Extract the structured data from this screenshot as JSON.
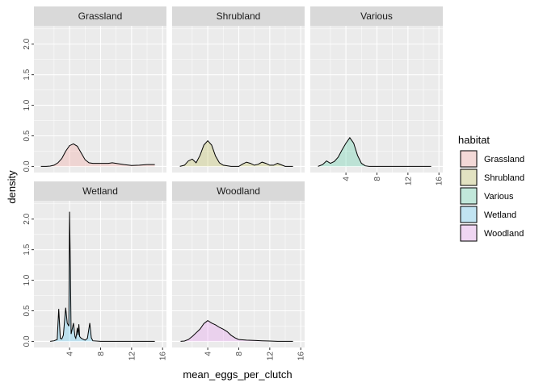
{
  "chart_data": {
    "type": "area",
    "title": "",
    "xlabel": "mean_eggs_per_clutch",
    "ylabel": "density",
    "xlim": [
      -0.6,
      16.5
    ],
    "ylim": [
      -0.1,
      2.3
    ],
    "x_ticks": [
      4,
      8,
      12,
      16
    ],
    "x_tick_labels": [
      "4",
      "8",
      "12",
      "16"
    ],
    "y_ticks": [
      0.0,
      0.5,
      1.0,
      1.5,
      2.0
    ],
    "y_tick_labels": [
      "0.0",
      "0.5",
      "1.0",
      "1.5",
      "2.0"
    ],
    "grid": true,
    "legend": {
      "title": "habitat",
      "position": "right",
      "entries": [
        "Grassland",
        "Shrubland",
        "Various",
        "Wetland",
        "Woodland"
      ]
    },
    "colors": {
      "Grassland": "#F8766D",
      "Shrubland": "#A3A500",
      "Various": "#00BF7D",
      "Wetland": "#00B0F6",
      "Woodland": "#E76BF3",
      "panel_bg": "#EBEBEB",
      "strip_bg": "#D9D9D9",
      "grid": "#FFFFFF"
    },
    "fill_alpha": 0.2,
    "series": [
      {
        "name": "Grassland",
        "x": [
          0.3,
          1.0,
          1.5,
          2.0,
          2.5,
          3.0,
          3.5,
          4.0,
          4.5,
          5.0,
          5.5,
          6.0,
          6.5,
          7.0,
          8.0,
          9.0,
          9.5,
          10.0,
          11.0,
          12.0,
          13.0,
          14.0,
          15.0
        ],
        "y": [
          0.0,
          0.0,
          0.005,
          0.02,
          0.06,
          0.13,
          0.25,
          0.34,
          0.37,
          0.33,
          0.22,
          0.11,
          0.06,
          0.05,
          0.05,
          0.05,
          0.06,
          0.05,
          0.03,
          0.015,
          0.02,
          0.03,
          0.03
        ]
      },
      {
        "name": "Shrubland",
        "x": [
          0.4,
          1.0,
          1.5,
          2.0,
          2.5,
          3.0,
          3.5,
          4.0,
          4.5,
          5.0,
          5.5,
          6.0,
          7.0,
          8.0,
          8.5,
          9.0,
          9.5,
          10.0,
          10.5,
          11.0,
          11.5,
          12.0,
          12.5,
          13.0,
          14.0,
          15.0
        ],
        "y": [
          0.0,
          0.02,
          0.09,
          0.12,
          0.06,
          0.18,
          0.35,
          0.42,
          0.35,
          0.17,
          0.06,
          0.02,
          0.0,
          0.0,
          0.04,
          0.07,
          0.05,
          0.02,
          0.035,
          0.07,
          0.05,
          0.02,
          0.02,
          0.05,
          0.0,
          0.0
        ]
      },
      {
        "name": "Various",
        "x": [
          0.4,
          1.0,
          1.5,
          2.0,
          2.5,
          3.0,
          3.5,
          4.0,
          4.5,
          5.0,
          5.5,
          6.0,
          6.5,
          7.0,
          8.0,
          9.0,
          10.0,
          11.0,
          12.0,
          13.0,
          14.0,
          15.0
        ],
        "y": [
          0.0,
          0.03,
          0.09,
          0.05,
          0.08,
          0.15,
          0.27,
          0.38,
          0.47,
          0.38,
          0.18,
          0.05,
          0.01,
          0.0,
          0.0,
          0.0,
          0.0,
          0.0,
          0.0,
          0.0,
          0.0,
          0.0
        ]
      },
      {
        "name": "Wetland",
        "x": [
          1.5,
          2.0,
          2.4,
          2.6,
          2.8,
          3.0,
          3.2,
          3.5,
          3.7,
          3.9,
          4.0,
          4.1,
          4.2,
          4.3,
          4.5,
          4.7,
          4.8,
          4.9,
          5.0,
          5.1,
          5.2,
          5.3,
          5.5,
          6.0,
          6.3,
          6.6,
          6.8,
          7.0,
          8.0,
          10.0,
          12.0,
          14.0,
          15.0
        ],
        "y": [
          0.0,
          0.01,
          0.03,
          0.53,
          0.05,
          0.04,
          0.1,
          0.55,
          0.3,
          0.25,
          2.12,
          1.2,
          0.12,
          0.18,
          0.3,
          0.08,
          0.05,
          0.12,
          0.22,
          0.1,
          0.28,
          0.08,
          0.05,
          0.02,
          0.05,
          0.3,
          0.06,
          0.01,
          0.0,
          0.0,
          0.0,
          0.0,
          0.0
        ]
      },
      {
        "name": "Woodland",
        "x": [
          0.5,
          1.0,
          1.5,
          2.0,
          2.5,
          3.0,
          3.5,
          4.0,
          4.5,
          5.0,
          5.5,
          6.0,
          6.5,
          7.0,
          7.5,
          8.0,
          9.0,
          10.0,
          11.0,
          12.0,
          13.0,
          14.0,
          15.0
        ],
        "y": [
          0.0,
          0.005,
          0.03,
          0.08,
          0.14,
          0.2,
          0.29,
          0.34,
          0.3,
          0.27,
          0.23,
          0.2,
          0.16,
          0.1,
          0.06,
          0.03,
          0.02,
          0.015,
          0.01,
          0.005,
          0.0,
          0.0,
          0.0
        ]
      }
    ]
  }
}
